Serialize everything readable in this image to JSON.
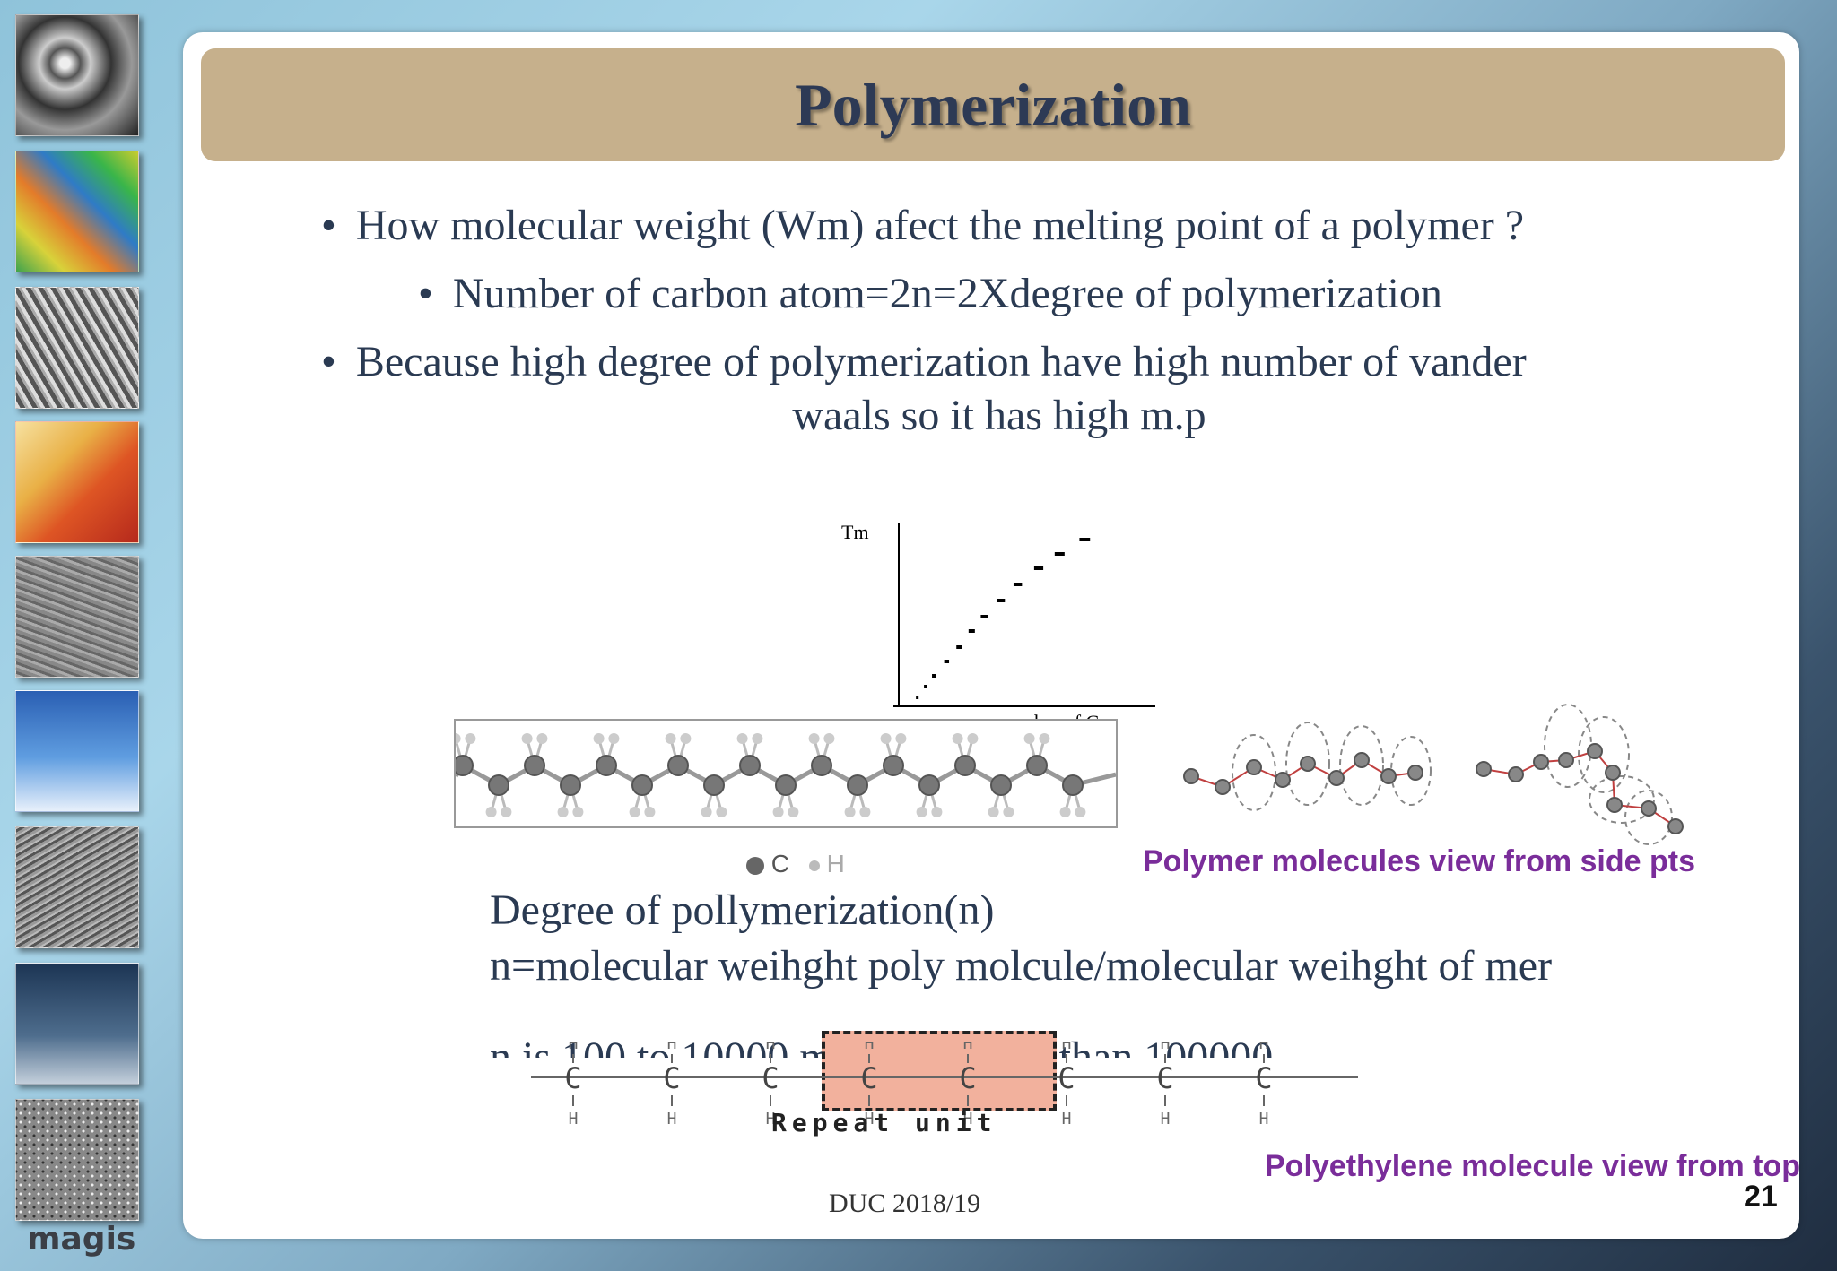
{
  "slide": {
    "title": "Polymerization",
    "bullets": [
      "How molecular weight (Wm) afect the melting point of a polymer ?",
      "Number of carbon atom=2n=2Xdegree of polymerization",
      "Because high degree of polymerization have high number of vander"
    ],
    "bullet_continuation": "waals so it has high m.p",
    "chart_labels": {
      "y": "Tm",
      "x": "number of C"
    },
    "legend_c": "C",
    "legend_h": "H",
    "caption_side": "Polymer molecules  view from side pts",
    "body_lines": [
      "Degree of pollymerization(n)",
      "n=molecular weihght poly molcule/molecular weihght of mer",
      "n is 100 to 10000 may go higher than 100000"
    ],
    "repeat_unit": "Repeat unit",
    "atom_c": "C",
    "atom_h": "H",
    "caption_top": "Polyethylene molecule view from top",
    "footer": "DUC 2018/19",
    "page_number": "21"
  },
  "sidebar": {
    "logo": "magis"
  },
  "chart_data": {
    "type": "scatter",
    "xlabel": "number of C",
    "ylabel": "Tm",
    "points": [
      [
        4,
        4
      ],
      [
        6,
        10
      ],
      [
        8,
        16
      ],
      [
        11,
        24
      ],
      [
        14,
        32
      ],
      [
        17,
        41
      ],
      [
        20,
        49
      ],
      [
        24,
        58
      ],
      [
        28,
        67
      ],
      [
        33,
        76
      ],
      [
        38,
        84
      ],
      [
        44,
        92
      ]
    ],
    "xlim": [
      0,
      60
    ],
    "ylim": [
      0,
      100
    ]
  },
  "colors": {
    "title_bar": "#c6b08c",
    "title_text": "#2d3a55",
    "accent_purple": "#7a2d9a",
    "repeat_box": "#f2b19d"
  }
}
